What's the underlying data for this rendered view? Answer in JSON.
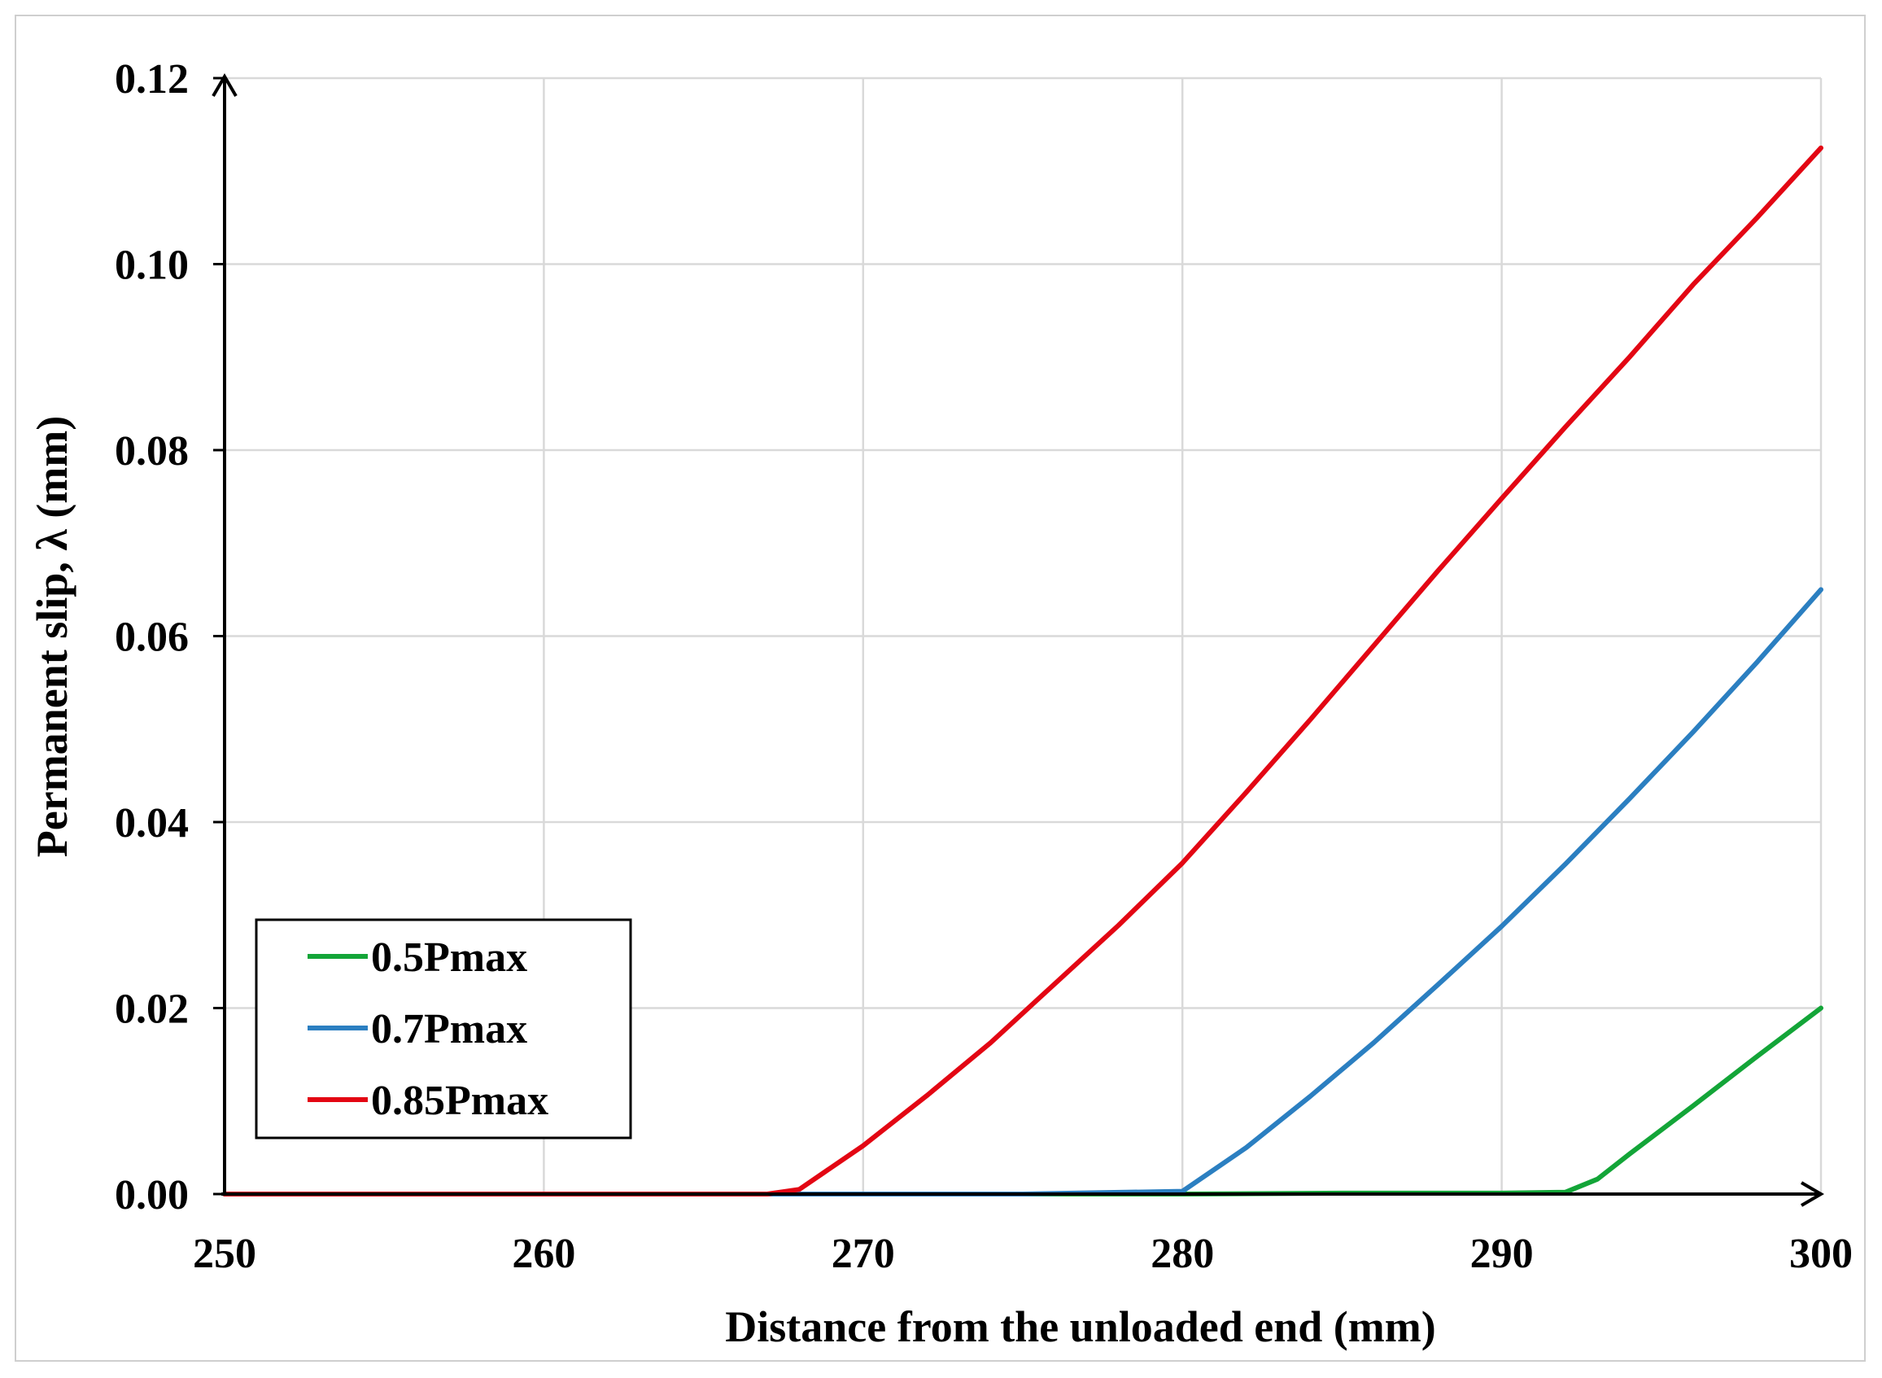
{
  "chart_data": {
    "type": "line",
    "title": "",
    "xlabel": "Distance from the unloaded end (mm)",
    "ylabel": "Permanent slip, λ (mm)",
    "xlim": [
      250,
      300
    ],
    "ylim": [
      0,
      0.12
    ],
    "x_ticks": [
      "250",
      "260",
      "270",
      "280",
      "290",
      "300"
    ],
    "y_ticks": [
      "0.00",
      "0.02",
      "0.04",
      "0.06",
      "0.08",
      "0.10",
      "0.12"
    ],
    "grid": true,
    "legend_position": "lower-left",
    "series": [
      {
        "name": "0.5Pmax",
        "color": "#13a538",
        "x": [
          250,
          260,
          270,
          280,
          285,
          290,
          292,
          293,
          294,
          296,
          298,
          300
        ],
        "y": [
          0,
          0,
          0,
          0,
          0.0001,
          0.0001,
          0.0002,
          0.0016,
          0.0043,
          0.0095,
          0.0148,
          0.02
        ]
      },
      {
        "name": "0.7Pmax",
        "color": "#2b7fc1",
        "x": [
          250,
          260,
          270,
          275,
          280,
          282,
          284,
          286,
          288,
          290,
          292,
          294,
          296,
          298,
          300
        ],
        "y": [
          0,
          0,
          0,
          0,
          0.0003,
          0.005,
          0.0105,
          0.0163,
          0.0225,
          0.0288,
          0.0355,
          0.0425,
          0.0497,
          0.0572,
          0.065
        ]
      },
      {
        "name": "0.85Pmax",
        "color": "#e30613",
        "x": [
          250,
          260,
          267,
          268,
          270,
          272,
          274,
          276,
          278,
          280,
          282,
          284,
          286,
          288,
          290,
          292,
          294,
          296,
          298,
          300
        ],
        "y": [
          0,
          0,
          0,
          0.0005,
          0.0052,
          0.0106,
          0.0163,
          0.0226,
          0.0289,
          0.0356,
          0.0432,
          0.051,
          0.059,
          0.067,
          0.0748,
          0.0825,
          0.09,
          0.0978,
          0.105,
          0.1125
        ]
      }
    ]
  }
}
